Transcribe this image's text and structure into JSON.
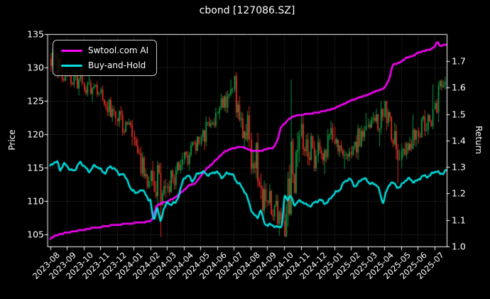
{
  "title": "cbond [127086.SZ]",
  "axes": {
    "left_label": "Price",
    "right_label": "Return",
    "price_ticks": [
      105,
      110,
      115,
      120,
      125,
      130,
      135
    ],
    "return_ticks": [
      "1.0",
      "1.1",
      "1.2",
      "1.3",
      "1.4",
      "1.5",
      "1.6",
      "1.7"
    ],
    "x_ticks": [
      "2023-08",
      "2023-09",
      "2023-10",
      "2023-11",
      "2023-12",
      "2024-01",
      "2024-02",
      "2024-03",
      "2024-04",
      "2024-05",
      "2024-06",
      "2024-07",
      "2024-08",
      "2024-09",
      "2024-10",
      "2024-11",
      "2024-12",
      "2025-01",
      "2025-02",
      "2025-03",
      "2025-04",
      "2025-05",
      "2025-06",
      "2025-07"
    ]
  },
  "legend": {
    "items": [
      {
        "label": "Swtool.com AI",
        "color": "#ff00ff"
      },
      {
        "label": "Buy-and-Hold",
        "color": "#00e1e1"
      }
    ]
  },
  "colors": {
    "background": "#000000",
    "text": "#ffffff",
    "grid": "#888888",
    "spine": "#ffffff",
    "candle_up": "#0fa648",
    "candle_down": "#ee3226",
    "ai_line": "#ff00ff",
    "bh_line": "#00e1e1"
  },
  "chart_data": {
    "type": "line+candlestick",
    "title": "cbond [127086.SZ]",
    "xlabel": "",
    "ylabel_left": "Price",
    "ylabel_right": "Return",
    "x_months": [
      "2023-08",
      "2023-09",
      "2023-10",
      "2023-11",
      "2023-12",
      "2024-01",
      "2024-02",
      "2024-03",
      "2024-04",
      "2024-05",
      "2024-06",
      "2024-07",
      "2024-08",
      "2024-09",
      "2024-10",
      "2024-11",
      "2024-12",
      "2025-01",
      "2025-02",
      "2025-03",
      "2025-04",
      "2025-05",
      "2025-06",
      "2025-07"
    ],
    "price_axis_range": [
      103.2,
      135.0
    ],
    "return_axis_range": [
      1.0,
      1.8
    ],
    "grid": true,
    "legend_position": "upper left",
    "candles_monthly_ohlc": [
      {
        "month": "2023-08",
        "o": 131.3,
        "h": 134.0,
        "l": 127.8,
        "c": 129.3
      },
      {
        "month": "2023-09",
        "o": 129.3,
        "h": 131.2,
        "l": 125.8,
        "c": 127.6
      },
      {
        "month": "2023-10",
        "o": 127.6,
        "h": 129.2,
        "l": 124.8,
        "c": 126.2
      },
      {
        "month": "2023-11",
        "o": 126.2,
        "h": 127.3,
        "l": 121.3,
        "c": 122.4
      },
      {
        "month": "2023-12",
        "o": 122.4,
        "h": 124.2,
        "l": 118.3,
        "c": 119.6
      },
      {
        "month": "2024-01",
        "o": 119.6,
        "h": 120.6,
        "l": 111.8,
        "c": 113.0
      },
      {
        "month": "2024-02",
        "o": 113.0,
        "h": 116.0,
        "l": 104.6,
        "c": 112.0
      },
      {
        "month": "2024-03",
        "o": 112.0,
        "h": 117.2,
        "l": 110.8,
        "c": 116.2
      },
      {
        "month": "2024-04",
        "o": 116.2,
        "h": 119.6,
        "l": 114.6,
        "c": 118.6
      },
      {
        "month": "2024-05",
        "o": 118.6,
        "h": 124.0,
        "l": 117.6,
        "c": 123.2
      },
      {
        "month": "2024-06",
        "o": 123.2,
        "h": 128.2,
        "l": 122.2,
        "c": 126.8
      },
      {
        "month": "2024-07",
        "o": 126.8,
        "h": 129.3,
        "l": 118.0,
        "c": 119.2
      },
      {
        "month": "2024-08",
        "o": 119.2,
        "h": 120.2,
        "l": 107.2,
        "c": 110.0
      },
      {
        "month": "2024-09",
        "o": 110.0,
        "h": 112.5,
        "l": 104.8,
        "c": 107.0
      },
      {
        "month": "2024-10",
        "o": 107.0,
        "h": 128.2,
        "l": 106.2,
        "c": 119.8
      },
      {
        "month": "2024-11",
        "o": 119.8,
        "h": 122.8,
        "l": 114.4,
        "c": 116.8
      },
      {
        "month": "2024-12",
        "o": 116.8,
        "h": 122.0,
        "l": 114.0,
        "c": 119.2
      },
      {
        "month": "2025-01",
        "o": 119.2,
        "h": 121.2,
        "l": 114.8,
        "c": 117.4
      },
      {
        "month": "2025-02",
        "o": 117.4,
        "h": 123.2,
        "l": 116.2,
        "c": 121.2
      },
      {
        "month": "2025-03",
        "o": 121.2,
        "h": 125.0,
        "l": 118.2,
        "c": 122.6
      },
      {
        "month": "2025-04",
        "o": 122.6,
        "h": 123.8,
        "l": 112.6,
        "c": 116.2
      },
      {
        "month": "2025-05",
        "o": 116.2,
        "h": 123.0,
        "l": 115.0,
        "c": 120.6
      },
      {
        "month": "2025-06",
        "o": 120.6,
        "h": 127.5,
        "l": 118.6,
        "c": 123.8
      },
      {
        "month": "2025-07",
        "o": 123.8,
        "h": 128.6,
        "l": 121.8,
        "c": 127.8
      }
    ],
    "series": [
      {
        "name": "Swtool.com AI",
        "axis": "return",
        "style": "step-like",
        "points": [
          [
            0,
            1.03
          ],
          [
            0.3,
            1.042
          ],
          [
            0.7,
            1.048
          ],
          [
            1,
            1.052
          ],
          [
            1.5,
            1.058
          ],
          [
            2,
            1.062
          ],
          [
            2.5,
            1.07
          ],
          [
            3,
            1.073
          ],
          [
            3.5,
            1.078
          ],
          [
            4,
            1.081
          ],
          [
            4.5,
            1.085
          ],
          [
            5,
            1.088
          ],
          [
            5.5,
            1.091
          ],
          [
            6,
            1.096
          ],
          [
            6.15,
            1.108
          ],
          [
            6.35,
            1.152
          ],
          [
            6.7,
            1.165
          ],
          [
            7,
            1.168
          ],
          [
            7.5,
            1.186
          ],
          [
            8,
            1.212
          ],
          [
            8.3,
            1.23
          ],
          [
            8.7,
            1.238
          ],
          [
            9,
            1.265
          ],
          [
            9.4,
            1.295
          ],
          [
            9.7,
            1.312
          ],
          [
            10,
            1.332
          ],
          [
            10.4,
            1.356
          ],
          [
            10.7,
            1.366
          ],
          [
            11,
            1.372
          ],
          [
            11.5,
            1.376
          ],
          [
            12,
            1.362
          ],
          [
            12.6,
            1.36
          ],
          [
            13,
            1.368
          ],
          [
            13.4,
            1.374
          ],
          [
            13.6,
            1.402
          ],
          [
            13.8,
            1.448
          ],
          [
            14,
            1.462
          ],
          [
            14.3,
            1.482
          ],
          [
            14.6,
            1.492
          ],
          [
            15,
            1.497
          ],
          [
            15.5,
            1.501
          ],
          [
            16,
            1.506
          ],
          [
            16.5,
            1.513
          ],
          [
            17,
            1.521
          ],
          [
            17.5,
            1.536
          ],
          [
            18,
            1.551
          ],
          [
            18.5,
            1.562
          ],
          [
            19,
            1.573
          ],
          [
            19.5,
            1.586
          ],
          [
            20,
            1.597
          ],
          [
            20.3,
            1.632
          ],
          [
            20.5,
            1.686
          ],
          [
            20.8,
            1.692
          ],
          [
            21,
            1.697
          ],
          [
            21.3,
            1.712
          ],
          [
            21.7,
            1.719
          ],
          [
            22,
            1.731
          ],
          [
            22.4,
            1.739
          ],
          [
            22.7,
            1.742
          ],
          [
            23,
            1.753
          ],
          [
            23.2,
            1.776
          ],
          [
            23.35,
            1.753
          ],
          [
            23.5,
            1.759
          ],
          [
            23.7,
            1.762
          ]
        ]
      },
      {
        "name": "Buy-and-Hold",
        "axis": "return",
        "style": "noisy",
        "points": [
          [
            0,
            1.298
          ],
          [
            0.2,
            1.312
          ],
          [
            0.45,
            1.322
          ],
          [
            0.6,
            1.295
          ],
          [
            0.8,
            1.308
          ],
          [
            1,
            1.3
          ],
          [
            1.2,
            1.286
          ],
          [
            1.5,
            1.298
          ],
          [
            1.8,
            1.312
          ],
          [
            2,
            1.302
          ],
          [
            2.3,
            1.29
          ],
          [
            2.6,
            1.3
          ],
          [
            3,
            1.292
          ],
          [
            3.3,
            1.284
          ],
          [
            3.6,
            1.296
          ],
          [
            4,
            1.288
          ],
          [
            4.3,
            1.272
          ],
          [
            4.6,
            1.25
          ],
          [
            4.8,
            1.216
          ],
          [
            5,
            1.222
          ],
          [
            5.2,
            1.196
          ],
          [
            5.5,
            1.212
          ],
          [
            5.8,
            1.192
          ],
          [
            6,
            1.178
          ],
          [
            6.1,
            1.128
          ],
          [
            6.2,
            1.088
          ],
          [
            6.4,
            1.146
          ],
          [
            6.6,
            1.094
          ],
          [
            6.8,
            1.152
          ],
          [
            7,
            1.162
          ],
          [
            7.2,
            1.152
          ],
          [
            7.5,
            1.168
          ],
          [
            7.8,
            1.218
          ],
          [
            8,
            1.252
          ],
          [
            8.3,
            1.266
          ],
          [
            8.5,
            1.254
          ],
          [
            8.8,
            1.27
          ],
          [
            9,
            1.274
          ],
          [
            9.3,
            1.282
          ],
          [
            9.6,
            1.272
          ],
          [
            10,
            1.277
          ],
          [
            10.3,
            1.268
          ],
          [
            10.6,
            1.273
          ],
          [
            11,
            1.266
          ],
          [
            11.3,
            1.242
          ],
          [
            11.5,
            1.216
          ],
          [
            11.7,
            1.196
          ],
          [
            12,
            1.152
          ],
          [
            12.2,
            1.122
          ],
          [
            12.4,
            1.102
          ],
          [
            12.6,
            1.132
          ],
          [
            12.8,
            1.096
          ],
          [
            13,
            1.086
          ],
          [
            13.2,
            1.08
          ],
          [
            13.5,
            1.068
          ],
          [
            13.7,
            1.076
          ],
          [
            13.9,
            1.092
          ],
          [
            14.02,
            1.192
          ],
          [
            14.2,
            1.172
          ],
          [
            14.4,
            1.186
          ],
          [
            14.6,
            1.162
          ],
          [
            14.8,
            1.174
          ],
          [
            15,
            1.168
          ],
          [
            15.3,
            1.154
          ],
          [
            15.6,
            1.162
          ],
          [
            16,
            1.166
          ],
          [
            16.3,
            1.173
          ],
          [
            16.6,
            1.169
          ],
          [
            17,
            1.192
          ],
          [
            17.3,
            1.22
          ],
          [
            17.6,
            1.242
          ],
          [
            18,
            1.25
          ],
          [
            18.3,
            1.232
          ],
          [
            18.6,
            1.248
          ],
          [
            19,
            1.252
          ],
          [
            19.3,
            1.238
          ],
          [
            19.6,
            1.224
          ],
          [
            19.9,
            1.168
          ],
          [
            20.1,
            1.208
          ],
          [
            20.4,
            1.238
          ],
          [
            20.7,
            1.228
          ],
          [
            21,
            1.233
          ],
          [
            21.3,
            1.246
          ],
          [
            21.6,
            1.253
          ],
          [
            22,
            1.249
          ],
          [
            22.3,
            1.259
          ],
          [
            22.6,
            1.271
          ],
          [
            23,
            1.279
          ],
          [
            23.3,
            1.273
          ],
          [
            23.5,
            1.283
          ],
          [
            23.7,
            1.289
          ]
        ]
      }
    ]
  }
}
